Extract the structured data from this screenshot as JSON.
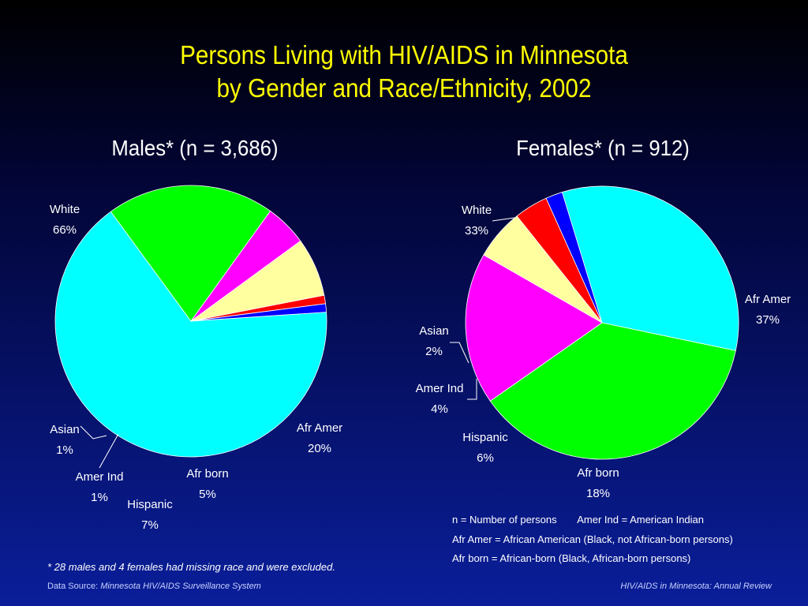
{
  "title_line1": "Persons Living with HIV/AIDS in Minnesota",
  "title_line2": "by Gender and Race/Ethnicity, 2002",
  "chart_data": [
    {
      "type": "pie",
      "title": "Males* (n = 3,686)",
      "slices": [
        {
          "label": "White",
          "pct_label": "66%",
          "value": 66,
          "color": "#00ffff"
        },
        {
          "label": "Afr Amer",
          "pct_label": "20%",
          "value": 20,
          "color": "#00ff00"
        },
        {
          "label": "Afr born",
          "pct_label": "5%",
          "value": 5,
          "color": "#ff00ff"
        },
        {
          "label": "Hispanic",
          "pct_label": "7%",
          "value": 7,
          "color": "#ffffa0"
        },
        {
          "label": "Amer Ind",
          "pct_label": "1%",
          "value": 1,
          "color": "#ff0000"
        },
        {
          "label": "Asian",
          "pct_label": "1%",
          "value": 1,
          "color": "#0000ff"
        }
      ]
    },
    {
      "type": "pie",
      "title": "Females* (n = 912)",
      "slices": [
        {
          "label": "White",
          "pct_label": "33%",
          "value": 33,
          "color": "#00ffff"
        },
        {
          "label": "Afr Amer",
          "pct_label": "37%",
          "value": 37,
          "color": "#00ff00"
        },
        {
          "label": "Afr born",
          "pct_label": "18%",
          "value": 18,
          "color": "#ff00ff"
        },
        {
          "label": "Hispanic",
          "pct_label": "6%",
          "value": 6,
          "color": "#ffffa0"
        },
        {
          "label": "Amer Ind",
          "pct_label": "4%",
          "value": 4,
          "color": "#ff0000"
        },
        {
          "label": "Asian",
          "pct_label": "2%",
          "value": 2,
          "color": "#0000ff"
        }
      ]
    }
  ],
  "legend": {
    "line1a": "n = Number of persons",
    "line1b": "Amer Ind = American Indian",
    "line2": "Afr Amer = African American (Black, not African-born persons)",
    "line3": "Afr born = African-born (Black, African-born persons)"
  },
  "footnote": "* 28 males and 4  females had missing race and were excluded.",
  "source_prefix": "Data Source:",
  "source_name": "Minnesota HIV/AIDS Surveillance System",
  "report_name": "HIV/AIDS in Minnesota: Annual Review"
}
